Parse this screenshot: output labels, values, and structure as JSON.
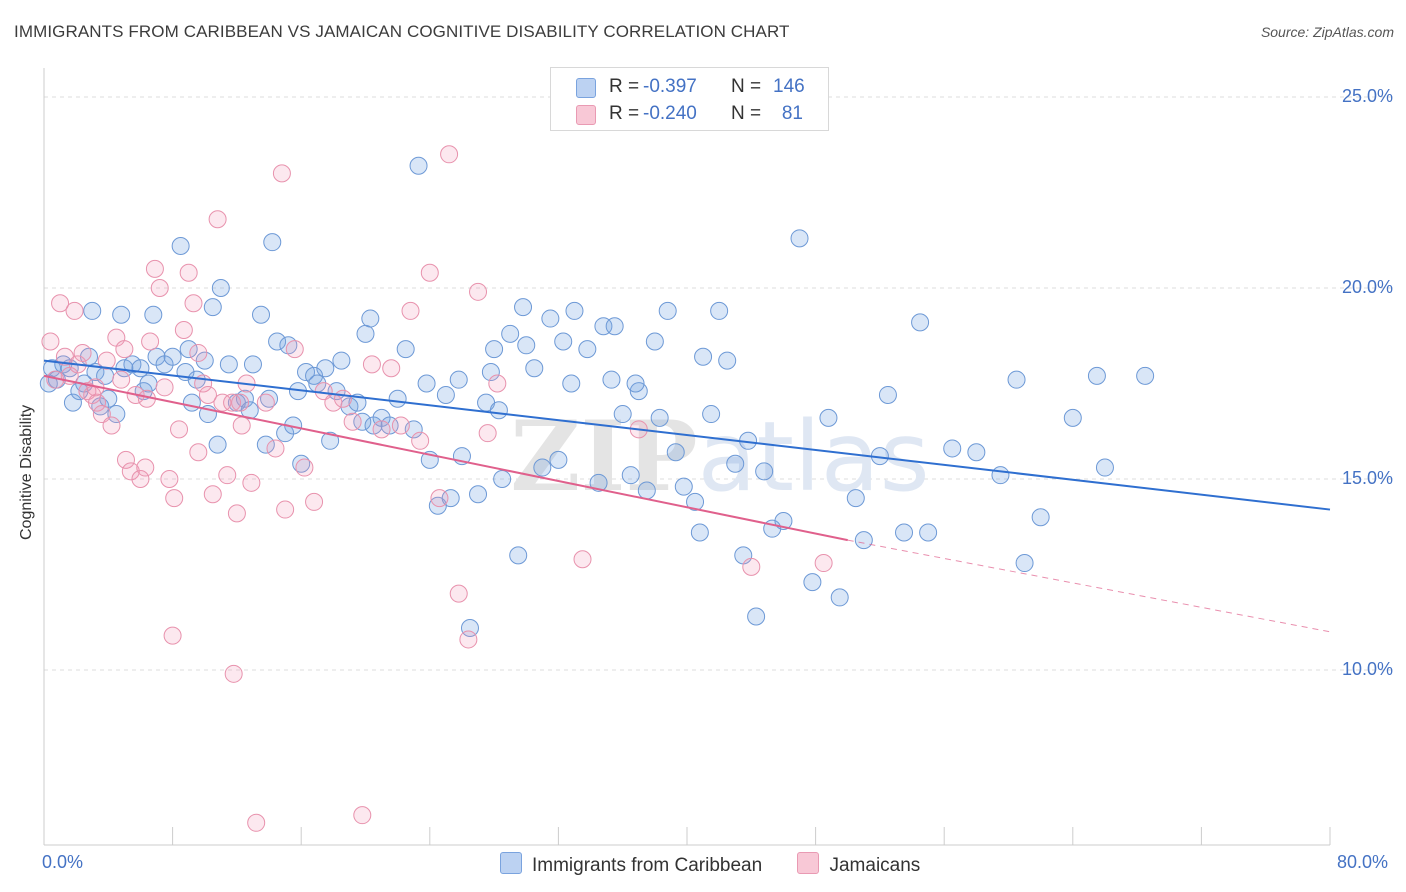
{
  "title": "IMMIGRANTS FROM CARIBBEAN VS JAMAICAN COGNITIVE DISABILITY CORRELATION CHART",
  "source": "Source: ZipAtlas.com",
  "watermark": "ZIPatlas",
  "legend_top": {
    "r_label": "R =",
    "n_label": "N =",
    "series": [
      {
        "r": "-0.397",
        "n": "146",
        "color": "#a9c4ec",
        "border": "#6f9ad8"
      },
      {
        "r": "-0.240",
        "n": "81",
        "color": "#f5b6c9",
        "border": "#e58aa6"
      }
    ]
  },
  "legend_bottom": [
    {
      "label": "Immigrants from Caribbean",
      "color": "#b8d0f2",
      "border": "#7aa3de"
    },
    {
      "label": "Jamaicans",
      "color": "#f8c8d6",
      "border": "#e99ab3"
    }
  ],
  "colors": {
    "blue": "#2f6fd0",
    "pink": "#e0608c",
    "blue_fill": "rgba(120,165,225,0.28)",
    "blue_stroke": "#6d99d6",
    "pink_fill": "rgba(240,150,180,0.22)",
    "pink_stroke": "#e892ad",
    "tick_text": "#4472c4"
  },
  "chart_data": {
    "type": "scatter",
    "title": "IMMIGRANTS FROM CARIBBEAN VS JAMAICAN COGNITIVE DISABILITY CORRELATION CHART",
    "xlabel": "",
    "ylabel": "Cognitive Disability",
    "xlim": [
      0,
      80
    ],
    "ylim": [
      5,
      26
    ],
    "x_tick_labels": [
      "0.0%",
      "80.0%"
    ],
    "y_ticks": [
      10,
      15,
      20,
      25
    ],
    "y_tick_labels": [
      "10.0%",
      "15.0%",
      "20.0%",
      "25.0%"
    ],
    "grid": true,
    "legend": "top-center",
    "series": [
      {
        "name": "Immigrants from Caribbean",
        "trend": {
          "x": [
            0,
            80
          ],
          "y": [
            18.1,
            14.2
          ]
        },
        "points": [
          [
            0.3,
            17.5
          ],
          [
            0.5,
            17.9
          ],
          [
            0.8,
            17.6
          ],
          [
            1.2,
            18.0
          ],
          [
            1.8,
            17.0
          ],
          [
            2.2,
            17.3
          ],
          [
            2.5,
            17.5
          ],
          [
            2.8,
            18.2
          ],
          [
            3.0,
            19.4
          ],
          [
            3.2,
            17.8
          ],
          [
            3.5,
            16.9
          ],
          [
            3.8,
            17.7
          ],
          [
            4.0,
            17.1
          ],
          [
            4.5,
            16.7
          ],
          [
            4.8,
            19.3
          ],
          [
            5.0,
            17.9
          ],
          [
            5.5,
            18.0
          ],
          [
            6.0,
            17.9
          ],
          [
            6.2,
            17.3
          ],
          [
            6.5,
            17.5
          ],
          [
            7.0,
            18.2
          ],
          [
            7.5,
            18.0
          ],
          [
            8.0,
            18.2
          ],
          [
            8.5,
            21.1
          ],
          [
            8.8,
            17.8
          ],
          [
            9.0,
            18.4
          ],
          [
            9.5,
            17.6
          ],
          [
            10.0,
            18.1
          ],
          [
            10.2,
            16.7
          ],
          [
            10.5,
            19.5
          ],
          [
            10.8,
            15.9
          ],
          [
            11.0,
            20.0
          ],
          [
            11.5,
            18.0
          ],
          [
            12.0,
            17.0
          ],
          [
            12.5,
            17.1
          ],
          [
            12.8,
            16.8
          ],
          [
            13.0,
            18.0
          ],
          [
            13.5,
            19.3
          ],
          [
            13.8,
            15.9
          ],
          [
            14.0,
            17.1
          ],
          [
            14.2,
            21.2
          ],
          [
            14.5,
            18.6
          ],
          [
            15.0,
            16.2
          ],
          [
            15.2,
            18.5
          ],
          [
            15.5,
            16.4
          ],
          [
            15.8,
            17.3
          ],
          [
            16.0,
            15.4
          ],
          [
            16.3,
            17.8
          ],
          [
            16.8,
            17.7
          ],
          [
            17.0,
            17.5
          ],
          [
            17.5,
            17.9
          ],
          [
            17.8,
            16.0
          ],
          [
            18.2,
            17.3
          ],
          [
            18.5,
            18.1
          ],
          [
            19.0,
            16.9
          ],
          [
            19.5,
            17.0
          ],
          [
            19.8,
            16.5
          ],
          [
            20.0,
            18.8
          ],
          [
            20.3,
            19.2
          ],
          [
            20.5,
            16.4
          ],
          [
            21.0,
            16.6
          ],
          [
            21.5,
            16.4
          ],
          [
            22.0,
            17.1
          ],
          [
            22.5,
            18.4
          ],
          [
            23.0,
            16.3
          ],
          [
            23.3,
            23.2
          ],
          [
            23.8,
            17.5
          ],
          [
            24.0,
            15.5
          ],
          [
            24.5,
            14.3
          ],
          [
            25.0,
            17.2
          ],
          [
            25.3,
            14.5
          ],
          [
            25.8,
            17.6
          ],
          [
            26.0,
            15.6
          ],
          [
            26.5,
            11.1
          ],
          [
            27.0,
            14.6
          ],
          [
            27.5,
            17.0
          ],
          [
            28.0,
            18.4
          ],
          [
            28.3,
            16.8
          ],
          [
            28.5,
            15.0
          ],
          [
            29.0,
            18.8
          ],
          [
            29.5,
            13.0
          ],
          [
            29.8,
            19.5
          ],
          [
            30.0,
            18.5
          ],
          [
            30.5,
            17.9
          ],
          [
            31.0,
            15.3
          ],
          [
            31.5,
            19.2
          ],
          [
            32.0,
            15.5
          ],
          [
            32.3,
            18.6
          ],
          [
            32.8,
            17.5
          ],
          [
            33.0,
            19.4
          ],
          [
            33.8,
            18.4
          ],
          [
            34.5,
            14.9
          ],
          [
            34.8,
            19.0
          ],
          [
            35.3,
            17.6
          ],
          [
            35.5,
            19.0
          ],
          [
            36.0,
            16.7
          ],
          [
            36.5,
            15.1
          ],
          [
            37.0,
            17.3
          ],
          [
            37.5,
            14.7
          ],
          [
            38.0,
            18.6
          ],
          [
            38.3,
            16.6
          ],
          [
            38.8,
            19.4
          ],
          [
            39.3,
            15.7
          ],
          [
            39.8,
            14.8
          ],
          [
            40.5,
            14.4
          ],
          [
            40.8,
            13.6
          ],
          [
            41.0,
            18.2
          ],
          [
            41.5,
            16.7
          ],
          [
            42.0,
            19.4
          ],
          [
            42.5,
            18.1
          ],
          [
            43.0,
            15.4
          ],
          [
            43.5,
            13.0
          ],
          [
            43.8,
            16.0
          ],
          [
            44.3,
            11.4
          ],
          [
            44.8,
            15.2
          ],
          [
            45.3,
            13.7
          ],
          [
            46.0,
            13.9
          ],
          [
            47.0,
            21.3
          ],
          [
            47.8,
            12.3
          ],
          [
            48.8,
            16.6
          ],
          [
            49.5,
            11.9
          ],
          [
            50.5,
            14.5
          ],
          [
            51.0,
            13.4
          ],
          [
            52.0,
            15.6
          ],
          [
            52.5,
            17.2
          ],
          [
            53.5,
            13.6
          ],
          [
            54.5,
            19.1
          ],
          [
            55.0,
            13.6
          ],
          [
            56.5,
            15.8
          ],
          [
            58.0,
            15.7
          ],
          [
            59.5,
            15.1
          ],
          [
            60.5,
            17.6
          ],
          [
            61.0,
            12.8
          ],
          [
            62.0,
            14.0
          ],
          [
            64.0,
            16.6
          ],
          [
            65.5,
            17.7
          ],
          [
            66.0,
            15.3
          ],
          [
            68.5,
            17.7
          ],
          [
            1.6,
            17.9
          ],
          [
            6.8,
            19.3
          ],
          [
            9.2,
            17.0
          ],
          [
            27.8,
            17.8
          ],
          [
            36.8,
            17.5
          ]
        ]
      },
      {
        "name": "Jamaicans",
        "trend": {
          "x": [
            0,
            50
          ],
          "y": [
            17.7,
            13.4
          ]
        },
        "trend_dashed": {
          "x": [
            50,
            80
          ],
          "y": [
            13.4,
            11.0
          ]
        },
        "points": [
          [
            0.4,
            18.6
          ],
          [
            0.7,
            17.6
          ],
          [
            1.0,
            19.6
          ],
          [
            1.3,
            18.2
          ],
          [
            1.6,
            17.7
          ],
          [
            1.9,
            19.4
          ],
          [
            2.1,
            18.0
          ],
          [
            2.4,
            18.3
          ],
          [
            2.7,
            17.3
          ],
          [
            3.0,
            17.2
          ],
          [
            3.3,
            17.0
          ],
          [
            3.6,
            16.7
          ],
          [
            3.9,
            18.1
          ],
          [
            4.2,
            16.4
          ],
          [
            4.5,
            18.7
          ],
          [
            4.8,
            17.6
          ],
          [
            5.1,
            15.5
          ],
          [
            5.4,
            15.2
          ],
          [
            5.7,
            17.2
          ],
          [
            6.0,
            15.0
          ],
          [
            6.3,
            15.3
          ],
          [
            6.6,
            18.6
          ],
          [
            6.9,
            20.5
          ],
          [
            7.2,
            20.0
          ],
          [
            7.5,
            17.4
          ],
          [
            7.8,
            15.0
          ],
          [
            8.1,
            14.5
          ],
          [
            8.4,
            16.3
          ],
          [
            8.7,
            18.9
          ],
          [
            9.0,
            20.4
          ],
          [
            9.3,
            19.6
          ],
          [
            9.6,
            15.7
          ],
          [
            9.9,
            17.5
          ],
          [
            10.2,
            17.2
          ],
          [
            10.5,
            14.6
          ],
          [
            10.8,
            21.8
          ],
          [
            11.1,
            17.0
          ],
          [
            11.4,
            15.1
          ],
          [
            11.7,
            17.0
          ],
          [
            12.0,
            14.1
          ],
          [
            12.3,
            16.4
          ],
          [
            12.6,
            17.5
          ],
          [
            12.9,
            14.9
          ],
          [
            13.2,
            6.0
          ],
          [
            13.8,
            17.0
          ],
          [
            14.4,
            15.8
          ],
          [
            15.0,
            14.2
          ],
          [
            15.6,
            18.4
          ],
          [
            16.2,
            15.3
          ],
          [
            16.8,
            14.4
          ],
          [
            17.4,
            17.3
          ],
          [
            18.0,
            17.0
          ],
          [
            18.6,
            17.1
          ],
          [
            19.2,
            16.5
          ],
          [
            19.8,
            6.2
          ],
          [
            20.4,
            18.0
          ],
          [
            21.0,
            16.3
          ],
          [
            21.6,
            17.9
          ],
          [
            22.2,
            16.4
          ],
          [
            22.8,
            19.4
          ],
          [
            23.4,
            16.0
          ],
          [
            24.0,
            20.4
          ],
          [
            24.6,
            14.5
          ],
          [
            25.2,
            23.5
          ],
          [
            25.8,
            12.0
          ],
          [
            26.4,
            10.8
          ],
          [
            27.0,
            19.9
          ],
          [
            27.6,
            16.2
          ],
          [
            28.2,
            17.5
          ],
          [
            8.0,
            10.9
          ],
          [
            11.8,
            9.9
          ],
          [
            14.8,
            23.0
          ],
          [
            33.5,
            12.9
          ],
          [
            37.0,
            16.3
          ],
          [
            44.0,
            12.7
          ],
          [
            48.5,
            12.8
          ],
          [
            3.2,
            17.4
          ],
          [
            5.0,
            18.4
          ],
          [
            6.4,
            17.1
          ],
          [
            9.6,
            18.3
          ],
          [
            12.2,
            17.0
          ]
        ]
      }
    ]
  }
}
